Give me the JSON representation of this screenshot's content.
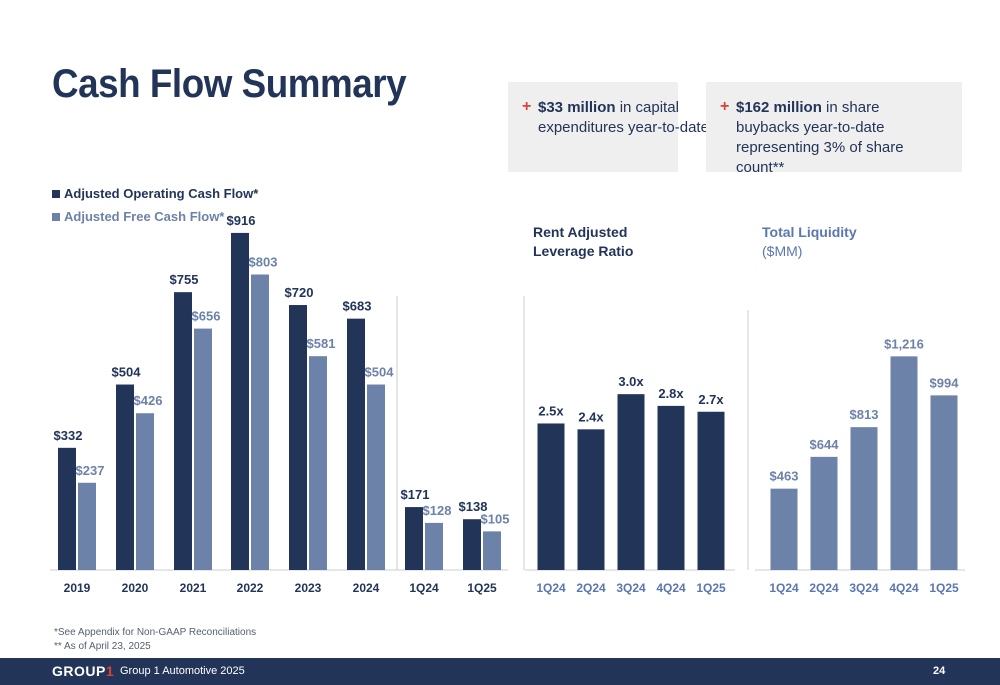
{
  "title": "Cash Flow Summary",
  "callouts": [
    {
      "bold": "$33 million",
      "rest": " in capital expenditures year-to-date"
    },
    {
      "bold": "$162 million",
      "rest": " in share buybacks year-to-date representing 3% of share count**"
    }
  ],
  "colors": {
    "dark": "#223458",
    "light": "#6d82a9",
    "accent": "#d8443a",
    "tick_light": "#5b76b0"
  },
  "chart_data": [
    {
      "type": "bar",
      "categories": [
        "2019",
        "2020",
        "2021",
        "2022",
        "2023",
        "2024",
        "1Q24",
        "1Q25"
      ],
      "series": [
        {
          "name": "Adjusted Operating Cash Flow*",
          "values": [
            332,
            504,
            755,
            916,
            720,
            683,
            171,
            138
          ],
          "labels": [
            "$332",
            "$504",
            "$755",
            "$916",
            "$720",
            "$683",
            "$171",
            "$138"
          ]
        },
        {
          "name": "Adjusted Free Cash Flow*",
          "values": [
            237,
            426,
            656,
            803,
            581,
            504,
            128,
            105
          ],
          "labels": [
            "$237",
            "$426",
            "$656",
            "$803",
            "$581",
            "$504",
            "$128",
            "$105"
          ]
        }
      ],
      "title": "",
      "ylim": [
        0,
        1000
      ],
      "legend": "top-left"
    },
    {
      "type": "bar",
      "title_lines": [
        "Rent Adjusted",
        "Leverage Ratio"
      ],
      "categories": [
        "1Q24",
        "2Q24",
        "3Q24",
        "4Q24",
        "1Q25"
      ],
      "values": [
        2.5,
        2.4,
        3.0,
        2.8,
        2.7
      ],
      "labels": [
        "2.5x",
        "2.4x",
        "3.0x",
        "2.8x",
        "2.7x"
      ],
      "ylim": [
        0,
        3.6
      ]
    },
    {
      "type": "bar",
      "title_lines": [
        "Total Liquidity",
        "($MM)"
      ],
      "categories": [
        "1Q24",
        "2Q24",
        "3Q24",
        "4Q24",
        "1Q25"
      ],
      "values": [
        463,
        644,
        813,
        1216,
        994
      ],
      "labels": [
        "$463",
        "$644",
        "$813",
        "$1,216",
        "$994"
      ],
      "ylim": [
        0,
        1440
      ]
    }
  ],
  "footnotes": [
    "*See Appendix for Non-GAAP Reconciliations",
    "** As of April 23, 2025"
  ],
  "footer": {
    "logo_text": "GROUP",
    "logo_num": "1",
    "company": "Group 1 Automotive 2025",
    "page": "24"
  }
}
